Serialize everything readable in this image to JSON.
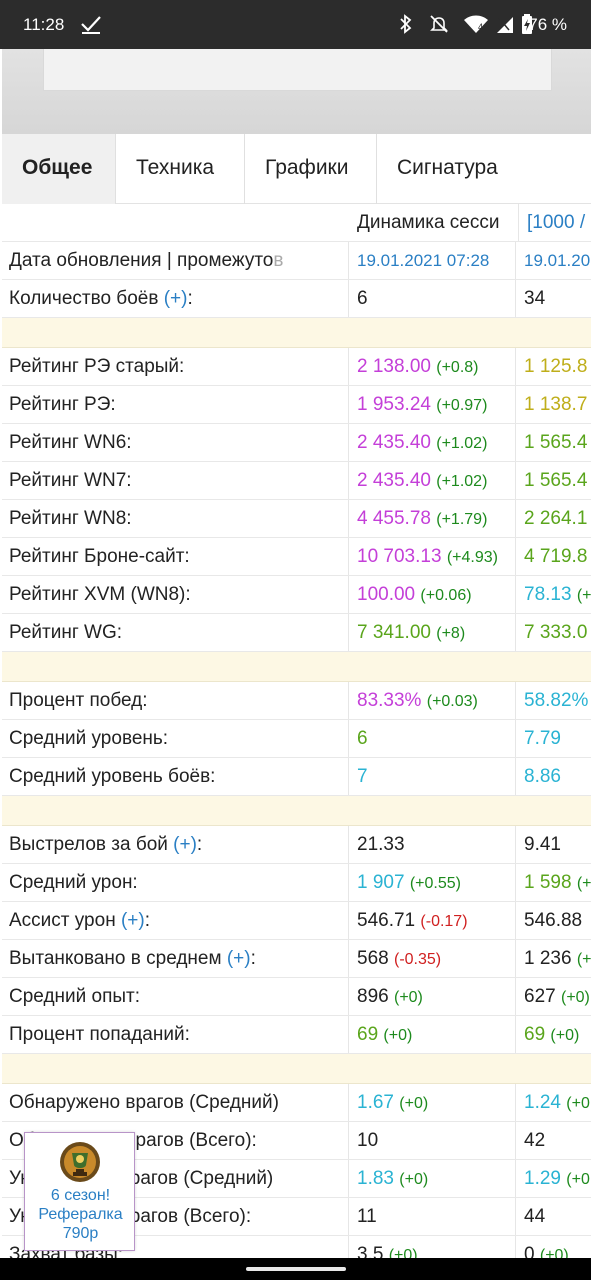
{
  "status_bar": {
    "time": "11:28",
    "battery": "76 %",
    "signal_badge": "4",
    "icons": [
      "check-icon",
      "bluetooth-icon",
      "bell-off-icon",
      "wifi-icon",
      "cell-signal-icon",
      "battery-icon"
    ]
  },
  "tabs": [
    {
      "label": "Общее",
      "active": true
    },
    {
      "label": "Техника",
      "active": false
    },
    {
      "label": "Графики",
      "active": false
    },
    {
      "label": "Сигнатура",
      "active": false
    }
  ],
  "table": {
    "header": {
      "col2": "Динамика сесси",
      "col3": "[1000 / "
    },
    "date_row": {
      "label": "Дата обновления | промежуто",
      "label_fade": "в",
      "col2": "19.01.2021 07:28",
      "col3": "19.01.20"
    },
    "battles_row": {
      "label": "Количество боёв ",
      "plus": "(+)",
      "colon": ":",
      "col2": "6",
      "col3": "34"
    },
    "ratings": [
      {
        "label": "Рейтинг РЭ старый:",
        "v": "2 138.00",
        "d": "(+0.8)",
        "c2": "magenta",
        "v3": "1 125.8",
        "c3": "olive"
      },
      {
        "label": "Рейтинг РЭ:",
        "v": "1 953.24",
        "d": "(+0.97)",
        "c2": "magenta",
        "v3": "1 138.7",
        "c3": "olive"
      },
      {
        "label": "Рейтинг WN6:",
        "v": "2 435.40",
        "d": "(+1.02)",
        "c2": "magenta",
        "v3": "1 565.4",
        "c3": "green"
      },
      {
        "label": "Рейтинг WN7:",
        "v": "2 435.40",
        "d": "(+1.02)",
        "c2": "magenta",
        "v3": "1 565.4",
        "c3": "green"
      },
      {
        "label": "Рейтинг WN8:",
        "v": "4 455.78",
        "d": "(+1.79)",
        "c2": "magenta",
        "v3": "2 264.1",
        "c3": "green"
      },
      {
        "label": "Рейтинг Броне-сайт:",
        "v": "10 703.13",
        "d": "(+4.93)",
        "c2": "magenta",
        "v3": "4 719.8",
        "c3": "green"
      },
      {
        "label": "Рейтинг XVM (WN8):",
        "v": "100.00",
        "d": "(+0.06)",
        "c2": "magenta",
        "v3": "78.13",
        "d3": "(+",
        "c3": "cyan"
      },
      {
        "label": "Рейтинг WG:",
        "v": "7 341.00",
        "d": "(+8)",
        "c2": "green",
        "v3": "7 333.0",
        "c3": "green"
      }
    ],
    "wins": [
      {
        "label": "Процент побед:",
        "v": "83.33%",
        "d": "(+0.03)",
        "c2": "magenta",
        "v3": "58.82%",
        "c3": "cyan"
      },
      {
        "label": "Средний уровень:",
        "v": "6",
        "d": "",
        "c2": "green",
        "v3": "7.79",
        "c3": "cyan"
      },
      {
        "label": "Средний уровень боёв:",
        "v": "7",
        "d": "",
        "c2": "cyan",
        "v3": "8.86",
        "c3": "cyan"
      }
    ],
    "combat": [
      {
        "label": "Выстрелов за бой ",
        "plus": "(+)",
        "colon": ":",
        "v": "21.33",
        "d": "",
        "dc": "",
        "c2": "dark",
        "v3": "9.41",
        "d3": "",
        "c3": "dark"
      },
      {
        "label": "Средний урон:",
        "plus": "",
        "colon": "",
        "v": "1 907",
        "d": "(+0.55)",
        "dc": "pos",
        "c2": "cyan",
        "v3": "1 598",
        "d3": "(+",
        "c3": "green"
      },
      {
        "label": "Ассист урон ",
        "plus": "(+)",
        "colon": ":",
        "v": "546.71",
        "d": "(-0.17)",
        "dc": "neg",
        "c2": "dark",
        "v3": "546.88",
        "d3": "",
        "c3": "dark"
      },
      {
        "label": "Вытанковано в среднем ",
        "plus": "(+)",
        "colon": ":",
        "v": "568",
        "d": "(-0.35)",
        "dc": "neg",
        "c2": "dark",
        "v3": "1 236",
        "d3": "(+",
        "c3": "dark"
      },
      {
        "label": "Средний опыт:",
        "plus": "",
        "colon": "",
        "v": "896",
        "d": "(+0)",
        "dc": "pos",
        "c2": "dark",
        "v3": "627",
        "d3": "(+0)",
        "c3": "dark"
      },
      {
        "label": "Процент попаданий:",
        "plus": "",
        "colon": "",
        "v": "69",
        "d": "(+0)",
        "dc": "pos",
        "c2": "green",
        "v3": "69",
        "d3": "(+0)",
        "c3": "green"
      }
    ],
    "detect": [
      {
        "label": "Обнаружено врагов (Средний)",
        "v": "1.67",
        "d": "(+0)",
        "c2": "cyan",
        "v3": "1.24",
        "d3": "(+0",
        "c3": "cyan"
      },
      {
        "label": "Обнаружено врагов (Всего):",
        "v": "10",
        "d": "",
        "c2": "dark",
        "v3": "42",
        "d3": "",
        "c3": "dark"
      },
      {
        "label": "Уничтожено врагов (Средний)",
        "v": "1.83",
        "d": "(+0)",
        "c2": "cyan",
        "v3": "1.29",
        "d3": "(+0",
        "c3": "cyan"
      },
      {
        "label": "Уничтожено врагов (Всего):",
        "v": "11",
        "d": "",
        "c2": "dark",
        "v3": "44",
        "d3": "",
        "c3": "dark"
      },
      {
        "label": "Захват базы:",
        "v": "3.5",
        "d": "(+0)",
        "c2": "dark",
        "v3": "0",
        "d3": "(+0)",
        "c3": "dark"
      }
    ]
  },
  "badge": {
    "line1": "6 сезон!",
    "line2": "Рефералка",
    "line3": "790р",
    "icon": "trophy-icon"
  },
  "colors": {
    "magenta": "#c43fd8",
    "olive": "#bfae1a",
    "green": "#5aa51c",
    "cyan": "#2ab3d3",
    "link": "#2a7fc4",
    "separator": "#fdf8e4"
  }
}
